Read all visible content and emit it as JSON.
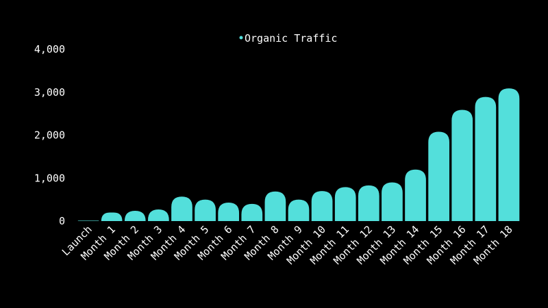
{
  "chart_data": {
    "type": "bar",
    "title": "",
    "xlabel": "",
    "ylabel": "",
    "categories": [
      "Launch",
      "Month 1",
      "Month 2",
      "Month 3",
      "Month 4",
      "Month 5",
      "Month 6",
      "Month 7",
      "Month 8",
      "Month 9",
      "Month 10",
      "Month 11",
      "Month 12",
      "Month 13",
      "Month 14",
      "Month 15",
      "Month 16",
      "Month 17",
      "Month 18"
    ],
    "series": [
      {
        "name": "Organic Traffic",
        "color": "#53dfdb",
        "values": [
          10,
          200,
          240,
          270,
          570,
          500,
          430,
          400,
          690,
          500,
          700,
          790,
          830,
          900,
          1200,
          2080,
          2590,
          2890,
          3090
        ]
      }
    ],
    "ylim": [
      0,
      4000
    ],
    "yticks": [
      "0",
      "1,000",
      "2,000",
      "3,000",
      "4,000"
    ],
    "grid": false,
    "legend_position": "top-center",
    "background": "#000000",
    "text_color": "#ffffff"
  }
}
